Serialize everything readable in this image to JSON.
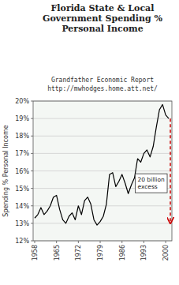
{
  "chart_data": {
    "type": "line",
    "title": "Florida State & Local\nGovernment Spending %\nPersonal Income",
    "subtitle": [
      "Grandfather Economic Report",
      "http://mwhodges.home.att.net/"
    ],
    "ylabel": "Spending % Personal Income",
    "x": [
      1958,
      1959,
      1960,
      1961,
      1962,
      1963,
      1964,
      1965,
      1966,
      1967,
      1968,
      1969,
      1970,
      1971,
      1972,
      1973,
      1974,
      1975,
      1976,
      1977,
      1978,
      1979,
      1980,
      1981,
      1982,
      1983,
      1984,
      1985,
      1986,
      1987,
      1988,
      1989,
      1990,
      1991,
      1992,
      1993,
      1994,
      1995,
      1996,
      1997,
      1998,
      1999,
      2000,
      2001
    ],
    "values": [
      13.3,
      13.5,
      13.9,
      13.5,
      13.7,
      14.0,
      14.5,
      14.6,
      13.8,
      13.2,
      13.0,
      13.4,
      13.6,
      13.2,
      14.0,
      13.5,
      14.3,
      14.5,
      14.1,
      13.2,
      12.9,
      13.1,
      13.4,
      14.1,
      15.8,
      15.9,
      15.1,
      15.4,
      15.8,
      15.3,
      14.7,
      15.2,
      15.6,
      16.7,
      16.5,
      17.0,
      17.2,
      16.8,
      17.4,
      18.5,
      19.5,
      19.8,
      19.2,
      19.0
    ],
    "color": "#000000",
    "xlim": [
      1957.5,
      2002
    ],
    "xticks": [
      1958,
      1965,
      1972,
      1979,
      1986,
      1993,
      2000
    ],
    "ylim": [
      12,
      20
    ],
    "yticks": [
      {
        "value": 12,
        "label": "12%"
      },
      {
        "value": 13,
        "label": "13%"
      },
      {
        "value": 14,
        "label": "14%"
      },
      {
        "value": 15,
        "label": "15%"
      },
      {
        "value": 16,
        "label": "16%"
      },
      {
        "value": 17,
        "label": "17%"
      },
      {
        "value": 18,
        "label": "18%"
      },
      {
        "value": 19,
        "label": "19%"
      },
      {
        "value": 20,
        "label": "20%"
      }
    ],
    "grid": true,
    "annotations": [
      {
        "text": "20 billion\nexcess",
        "x": 1994.5,
        "y": 15.3
      },
      {
        "type": "arrow",
        "x": 2001.5,
        "y_start": 19.0,
        "y_end": 13.0,
        "color": "#cc0000"
      }
    ]
  }
}
